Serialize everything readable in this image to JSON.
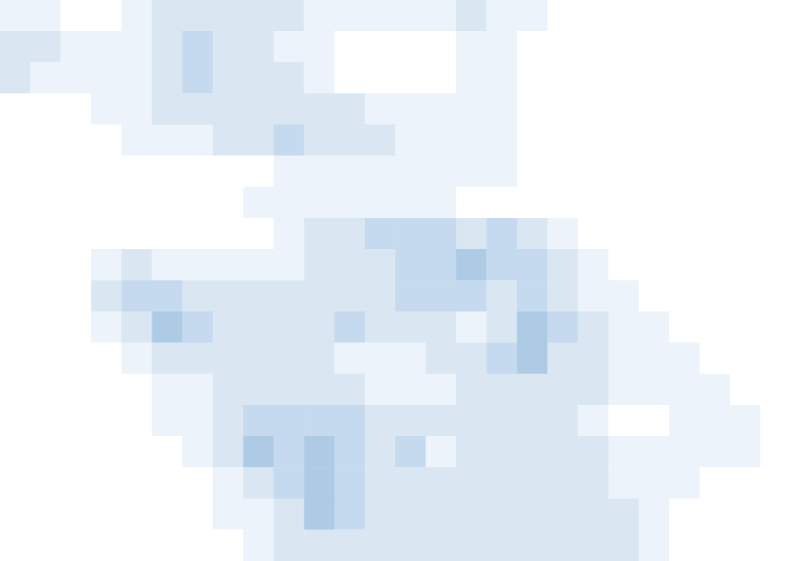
{
  "chart_data": {
    "type": "heatmap",
    "tick_labels": false,
    "color_levels": [
      0,
      1,
      2,
      3,
      4
    ],
    "colors": [
      "#ffffff",
      "#edf3fa",
      "#dae7f3",
      "#c5daee",
      "#aecbe6"
    ],
    "cells": [
      [
        1,
        1,
        0,
        0,
        1,
        2,
        2,
        2,
        2,
        2,
        1,
        1,
        1,
        1,
        1,
        2,
        1,
        1,
        0,
        0,
        0,
        0,
        0,
        0,
        0,
        0
      ],
      [
        2,
        2,
        1,
        1,
        1,
        2,
        3,
        2,
        2,
        1,
        1,
        0,
        0,
        0,
        0,
        1,
        1,
        0,
        0,
        0,
        0,
        0,
        0,
        0,
        0,
        0
      ],
      [
        2,
        1,
        1,
        1,
        1,
        2,
        3,
        2,
        2,
        2,
        1,
        0,
        0,
        0,
        0,
        1,
        1,
        0,
        0,
        0,
        0,
        0,
        0,
        0,
        0,
        0
      ],
      [
        0,
        0,
        0,
        1,
        1,
        2,
        2,
        2,
        2,
        2,
        2,
        2,
        1,
        1,
        1,
        1,
        1,
        0,
        0,
        0,
        0,
        0,
        0,
        0,
        0,
        0
      ],
      [
        0,
        0,
        0,
        0,
        1,
        1,
        1,
        2,
        2,
        3,
        2,
        2,
        2,
        1,
        1,
        1,
        1,
        0,
        0,
        0,
        0,
        0,
        0,
        0,
        0,
        0
      ],
      [
        0,
        0,
        0,
        0,
        0,
        0,
        0,
        0,
        0,
        1,
        1,
        1,
        1,
        1,
        1,
        1,
        1,
        0,
        0,
        0,
        0,
        0,
        0,
        0,
        0,
        0
      ],
      [
        0,
        0,
        0,
        0,
        0,
        0,
        0,
        0,
        1,
        1,
        1,
        1,
        1,
        1,
        1,
        0,
        0,
        0,
        0,
        0,
        0,
        0,
        0,
        0,
        0,
        0
      ],
      [
        0,
        0,
        0,
        0,
        0,
        0,
        0,
        0,
        0,
        1,
        2,
        2,
        3,
        3,
        3,
        2,
        3,
        2,
        1,
        0,
        0,
        0,
        0,
        0,
        0,
        0
      ],
      [
        0,
        0,
        0,
        1,
        2,
        1,
        1,
        1,
        1,
        1,
        2,
        2,
        2,
        3,
        3,
        4,
        3,
        3,
        2,
        1,
        0,
        0,
        0,
        0,
        0,
        0
      ],
      [
        0,
        0,
        0,
        2,
        3,
        3,
        2,
        2,
        2,
        2,
        2,
        2,
        2,
        3,
        3,
        3,
        2,
        3,
        2,
        1,
        1,
        0,
        0,
        0,
        0,
        0
      ],
      [
        0,
        0,
        0,
        1,
        2,
        4,
        3,
        2,
        2,
        2,
        2,
        3,
        2,
        2,
        2,
        1,
        2,
        4,
        3,
        2,
        1,
        1,
        0,
        0,
        0,
        0
      ],
      [
        0,
        0,
        0,
        0,
        1,
        2,
        2,
        2,
        2,
        2,
        2,
        1,
        1,
        1,
        2,
        2,
        3,
        4,
        2,
        2,
        1,
        1,
        1,
        0,
        0,
        0
      ],
      [
        0,
        0,
        0,
        0,
        0,
        1,
        1,
        2,
        2,
        2,
        2,
        2,
        1,
        1,
        1,
        2,
        2,
        2,
        2,
        2,
        1,
        1,
        1,
        1,
        0,
        0
      ],
      [
        0,
        0,
        0,
        0,
        0,
        1,
        1,
        2,
        3,
        3,
        3,
        3,
        2,
        2,
        2,
        2,
        2,
        2,
        2,
        1,
        0,
        0,
        1,
        1,
        1,
        0
      ],
      [
        0,
        0,
        0,
        0,
        0,
        0,
        1,
        2,
        4,
        3,
        4,
        3,
        2,
        3,
        1,
        2,
        2,
        2,
        2,
        2,
        1,
        1,
        1,
        1,
        1,
        0
      ],
      [
        0,
        0,
        0,
        0,
        0,
        0,
        0,
        1,
        2,
        3,
        4,
        3,
        2,
        2,
        2,
        2,
        2,
        2,
        2,
        2,
        1,
        1,
        1,
        0,
        0,
        0
      ],
      [
        0,
        0,
        0,
        0,
        0,
        0,
        0,
        1,
        1,
        2,
        4,
        3,
        2,
        2,
        2,
        2,
        2,
        2,
        2,
        2,
        2,
        1,
        0,
        0,
        0,
        0
      ],
      [
        0,
        0,
        0,
        0,
        0,
        0,
        0,
        0,
        1,
        2,
        2,
        2,
        2,
        2,
        2,
        2,
        2,
        2,
        2,
        2,
        2,
        1,
        0,
        0,
        0,
        0
      ]
    ]
  }
}
